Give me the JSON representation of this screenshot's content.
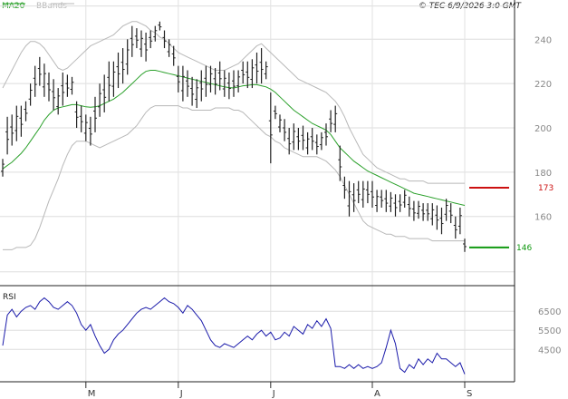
{
  "header": {
    "legend": [
      {
        "label": "MA20",
        "color": "#2aa02a"
      },
      {
        "label": "BBands",
        "color": "#b8b8b8"
      }
    ],
    "timestamp": "© TEC 6/9/2026 3:0 GMT"
  },
  "chart_data": [
    {
      "type": "line",
      "panel": "price",
      "ylim": [
        130,
        252
      ],
      "y_ticks": [
        160,
        180,
        200,
        220,
        240
      ],
      "x_labels": [
        "M",
        "J",
        "J",
        "A",
        "S"
      ],
      "x_label_index": [
        18,
        38,
        58,
        80,
        100
      ],
      "grid": true,
      "series": [
        {
          "name": "",
          "style": "ohlc-bars",
          "color": "#222222",
          "low": [
            178,
            188,
            192,
            194,
            196,
            203,
            210,
            214,
            219,
            214,
            212,
            208,
            206,
            210,
            214,
            215,
            200,
            198,
            194,
            192,
            198,
            205,
            207,
            212,
            214,
            218,
            220,
            224,
            232,
            236,
            232,
            230,
            236,
            239,
            244,
            236,
            232,
            228,
            216,
            212,
            214,
            210,
            209,
            212,
            214,
            216,
            215,
            217,
            214,
            213,
            214,
            216,
            220,
            218,
            218,
            220,
            220,
            222,
            184,
            204,
            198,
            194,
            188,
            190,
            190,
            190,
            188,
            190,
            188,
            190,
            192,
            198,
            198,
            176,
            168,
            160,
            162,
            166,
            164,
            166,
            164,
            162,
            164,
            162,
            162,
            160,
            162,
            164,
            160,
            158,
            159,
            158,
            158,
            156,
            154,
            152,
            158,
            157,
            150,
            152,
            144
          ],
          "high": [
            186,
            205,
            206,
            210,
            210,
            212,
            220,
            228,
            232,
            229,
            225,
            222,
            218,
            225,
            224,
            223,
            212,
            210,
            206,
            205,
            214,
            220,
            224,
            230,
            230,
            234,
            236,
            240,
            246,
            245,
            244,
            243,
            244,
            246,
            248,
            244,
            240,
            237,
            228,
            228,
            226,
            223,
            222,
            226,
            228,
            228,
            227,
            230,
            226,
            225,
            226,
            226,
            230,
            230,
            231,
            234,
            236,
            230,
            216,
            210,
            206,
            204,
            200,
            202,
            200,
            201,
            198,
            200,
            197,
            198,
            202,
            208,
            210,
            192,
            178,
            176,
            175,
            176,
            176,
            176,
            176,
            172,
            172,
            172,
            171,
            170,
            170,
            172,
            169,
            167,
            167,
            166,
            166,
            166,
            165,
            164,
            168,
            166,
            160,
            164,
            150
          ]
        },
        {
          "name": "MA20",
          "color": "#2aa02a",
          "values": [
            181.5,
            183,
            184.5,
            186.5,
            188.5,
            191,
            194,
            197,
            200,
            203.5,
            206,
            208,
            209,
            209.5,
            210,
            210.5,
            210.5,
            210,
            209.5,
            209.3,
            209.5,
            210,
            211,
            212,
            213,
            214.5,
            216,
            218,
            220,
            222,
            224,
            225.5,
            226,
            226,
            225.5,
            225,
            224.5,
            224,
            223.5,
            223,
            222.5,
            222,
            221.5,
            221,
            220.5,
            220,
            219.5,
            219,
            218.5,
            218.2,
            218,
            218.5,
            219,
            219.2,
            219.5,
            219.5,
            219,
            218.5,
            217.5,
            216,
            214,
            212,
            210,
            208,
            206.5,
            205,
            203.5,
            202,
            201,
            200,
            199,
            197,
            194,
            191,
            189,
            187,
            185,
            183.5,
            182,
            180.5,
            179.5,
            178.5,
            177.5,
            176.5,
            175.5,
            174.5,
            173.5,
            172.5,
            171.5,
            170.5,
            170,
            169.5,
            169,
            168.5,
            168,
            167.5,
            167,
            166.5,
            166,
            165.5,
            165
          ]
        },
        {
          "name": "BBands",
          "color": "#b8b8b8",
          "upper": [
            218,
            222,
            226,
            230,
            234,
            237,
            239,
            239,
            238,
            236,
            233,
            230,
            227,
            226,
            227,
            229,
            231,
            233,
            235,
            237,
            238,
            239,
            240,
            241,
            242,
            244,
            246,
            247,
            248,
            248,
            247,
            246,
            244,
            243,
            241,
            240,
            238,
            236,
            234,
            233,
            232,
            231,
            230,
            229,
            228,
            227,
            226,
            226,
            226,
            227,
            228,
            229,
            231,
            233,
            235,
            237,
            238,
            236,
            234,
            232,
            230,
            228,
            226,
            224,
            222,
            221,
            220,
            219,
            218,
            217,
            216,
            214,
            212,
            209,
            205,
            200,
            196,
            192,
            188,
            186,
            184,
            182,
            181,
            180,
            179,
            178,
            177,
            177,
            176,
            176,
            176,
            176,
            175,
            175,
            175,
            175,
            175,
            175,
            175,
            175,
            175
          ],
          "lower": [
            145,
            145,
            145,
            146,
            146,
            146,
            147,
            150,
            155,
            161,
            167,
            172,
            177,
            183,
            188,
            192,
            194,
            194,
            194,
            193,
            192,
            191,
            192,
            193,
            194,
            195,
            196,
            197,
            199,
            201,
            204,
            207,
            209,
            210,
            210,
            210,
            210,
            210,
            210,
            209,
            209,
            208,
            208,
            208,
            208,
            208,
            209,
            209,
            209,
            209,
            208,
            208,
            207,
            205,
            203,
            201,
            199,
            197,
            196,
            194,
            193,
            191,
            190,
            189,
            188,
            187,
            187,
            187,
            187,
            186,
            185,
            183,
            181,
            178,
            174,
            170,
            166,
            162,
            158,
            156,
            155,
            154,
            153,
            152,
            152,
            151,
            151,
            151,
            150,
            150,
            150,
            150,
            150,
            149,
            149,
            149,
            149,
            149,
            149,
            149,
            149
          ]
        }
      ],
      "annotations": [
        {
          "label": "173",
          "value": 173,
          "color": "#cc1111"
        },
        {
          "label": "146",
          "value": 146,
          "color": "#119911"
        }
      ]
    },
    {
      "type": "line",
      "panel": "rsi",
      "title": "RSI",
      "ylim": [
        28,
        77
      ],
      "y_ticks": [
        {
          "value": 65,
          "label": "6500"
        },
        {
          "value": 55,
          "label": "5500"
        },
        {
          "value": 45,
          "label": "4500"
        }
      ],
      "grid": true,
      "series": [
        {
          "name": "",
          "color": "#1a1aaa",
          "values": [
            47,
            63,
            66,
            62,
            65,
            67,
            68,
            66,
            70,
            72,
            70,
            67,
            66,
            68,
            70,
            68,
            64,
            58,
            55,
            58,
            52,
            47,
            43,
            45,
            50,
            53,
            55,
            58,
            61,
            64,
            66,
            67,
            66,
            68,
            70,
            72,
            70,
            69,
            67,
            64,
            68,
            66,
            63,
            60,
            55,
            50,
            47,
            46,
            48,
            47,
            46,
            48,
            50,
            52,
            50,
            53,
            55,
            52,
            54,
            50,
            51,
            54,
            52,
            57,
            55,
            53,
            58,
            56,
            60,
            57,
            61,
            56,
            36,
            36,
            35,
            37,
            35,
            37,
            35,
            36,
            35,
            36,
            38,
            46,
            55,
            48,
            35,
            33,
            37,
            35,
            40,
            37,
            40,
            38,
            43,
            40,
            40,
            38,
            36,
            38,
            32
          ]
        }
      ]
    }
  ]
}
